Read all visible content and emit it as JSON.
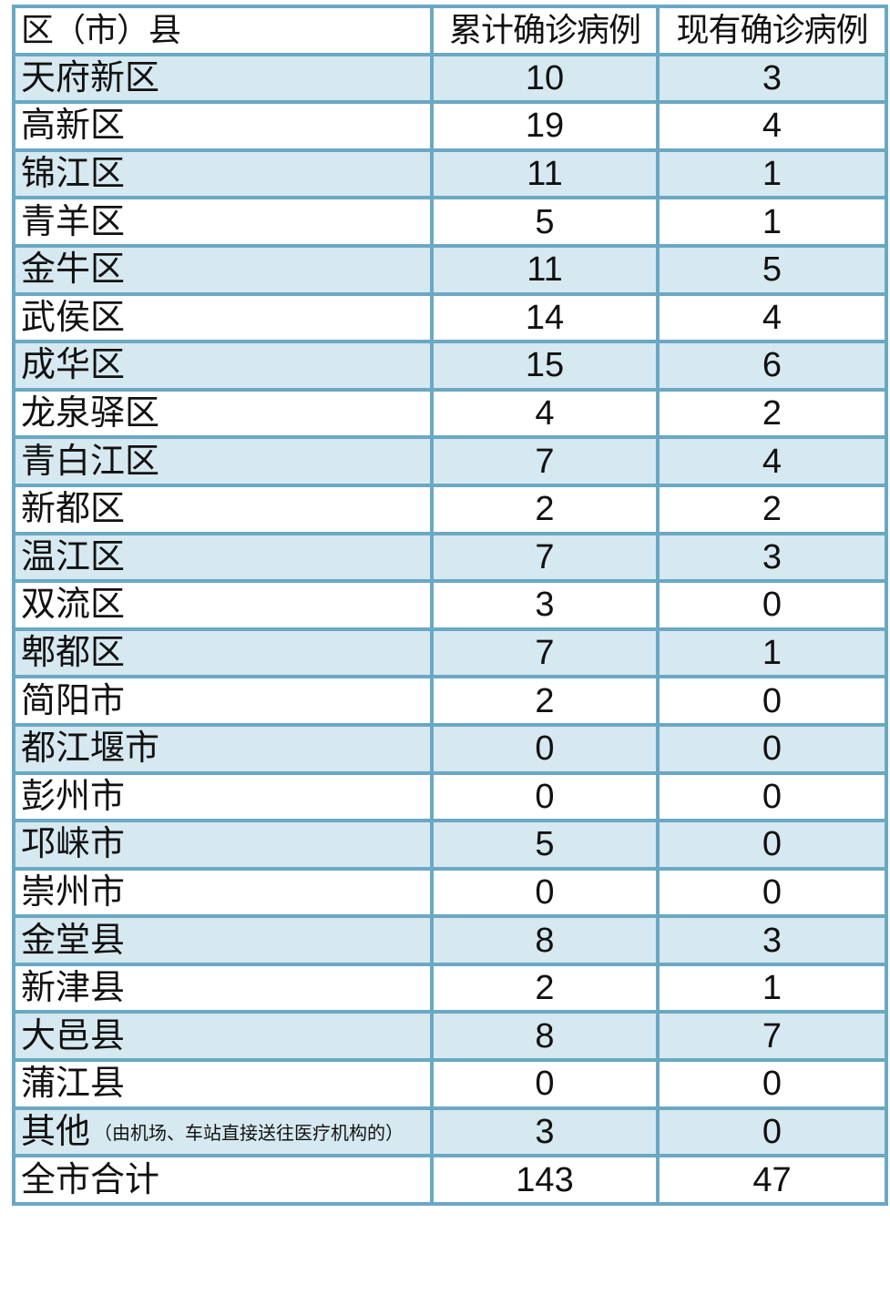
{
  "header": {
    "district": "区（市）县",
    "cumulative": "累计确诊病例",
    "current": "现有确诊病例"
  },
  "colors": {
    "border": "#6aa8c3",
    "stripe": "#d6e8f0"
  },
  "rows": [
    {
      "name": "天府新区",
      "cumulative": "10",
      "current": "3"
    },
    {
      "name": "高新区",
      "cumulative": "19",
      "current": "4"
    },
    {
      "name": "锦江区",
      "cumulative": "11",
      "current": "1"
    },
    {
      "name": "青羊区",
      "cumulative": "5",
      "current": "1"
    },
    {
      "name": "金牛区",
      "cumulative": "11",
      "current": "5"
    },
    {
      "name": "武侯区",
      "cumulative": "14",
      "current": "4"
    },
    {
      "name": "成华区",
      "cumulative": "15",
      "current": "6"
    },
    {
      "name": "龙泉驿区",
      "cumulative": "4",
      "current": "2"
    },
    {
      "name": "青白江区",
      "cumulative": "7",
      "current": "4"
    },
    {
      "name": "新都区",
      "cumulative": "2",
      "current": "2"
    },
    {
      "name": "温江区",
      "cumulative": "7",
      "current": "3"
    },
    {
      "name": "双流区",
      "cumulative": "3",
      "current": "0"
    },
    {
      "name": "郫都区",
      "cumulative": "7",
      "current": "1"
    },
    {
      "name": "简阳市",
      "cumulative": "2",
      "current": "0"
    },
    {
      "name": "都江堰市",
      "cumulative": "0",
      "current": "0"
    },
    {
      "name": "彭州市",
      "cumulative": "0",
      "current": "0"
    },
    {
      "name": "邛崃市",
      "cumulative": "5",
      "current": "0"
    },
    {
      "name": "崇州市",
      "cumulative": "0",
      "current": "0"
    },
    {
      "name": "金堂县",
      "cumulative": "8",
      "current": "3"
    },
    {
      "name": "新津县",
      "cumulative": "2",
      "current": "1"
    },
    {
      "name": "大邑县",
      "cumulative": "8",
      "current": "7"
    },
    {
      "name": "蒲江县",
      "cumulative": "0",
      "current": "0"
    },
    {
      "name": "其他",
      "note": "（由机场、车站直接送往医疗机构的）",
      "cumulative": "3",
      "current": "0"
    }
  ],
  "total": {
    "name": "全市合计",
    "cumulative": "143",
    "current": "47"
  }
}
